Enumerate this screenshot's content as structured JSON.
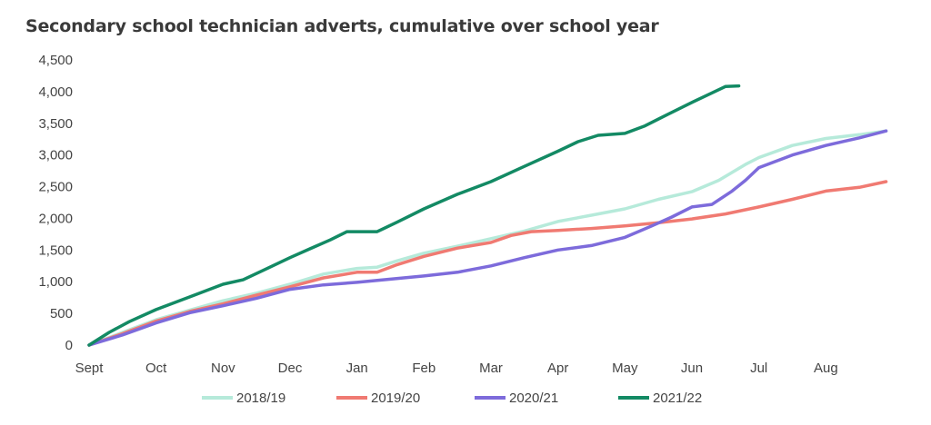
{
  "chart_data": {
    "type": "line",
    "title": "Secondary school technician adverts, cumulative over school year",
    "xlabel": "",
    "ylabel": "",
    "x_ticks": [
      "Sept",
      "Oct",
      "Nov",
      "Dec",
      "Jan",
      "Feb",
      "Mar",
      "Apr",
      "May",
      "Jun",
      "Jul",
      "Aug"
    ],
    "xlim": [
      0,
      12
    ],
    "ylim": [
      0,
      4500
    ],
    "y_ticks": [
      "0",
      "500",
      "1,000",
      "1,500",
      "2,000",
      "2,500",
      "3,000",
      "3,500",
      "4,000",
      "4,500"
    ],
    "y_tick_values": [
      0,
      500,
      1000,
      1500,
      2000,
      2500,
      3000,
      3500,
      4000,
      4500
    ],
    "grid": false,
    "legend": "bottom",
    "series": [
      {
        "name": "2018/19",
        "color": "#b6eada",
        "points": [
          [
            0,
            0
          ],
          [
            0.5,
            200
          ],
          [
            1,
            400
          ],
          [
            1.5,
            550
          ],
          [
            2,
            700
          ],
          [
            2.5,
            820
          ],
          [
            3,
            960
          ],
          [
            3.5,
            1120
          ],
          [
            4,
            1210
          ],
          [
            4.3,
            1230
          ],
          [
            4.6,
            1330
          ],
          [
            5,
            1450
          ],
          [
            5.5,
            1560
          ],
          [
            6,
            1680
          ],
          [
            6.5,
            1800
          ],
          [
            7,
            1950
          ],
          [
            7.5,
            2050
          ],
          [
            8,
            2150
          ],
          [
            8.5,
            2300
          ],
          [
            9,
            2420
          ],
          [
            9.4,
            2600
          ],
          [
            9.8,
            2850
          ],
          [
            10,
            2960
          ],
          [
            10.5,
            3150
          ],
          [
            11,
            3260
          ],
          [
            11.5,
            3320
          ],
          [
            11.9,
            3380
          ]
        ]
      },
      {
        "name": "2019/20",
        "color": "#f07a72",
        "points": [
          [
            0,
            0
          ],
          [
            0.5,
            180
          ],
          [
            1,
            380
          ],
          [
            1.5,
            530
          ],
          [
            2,
            650
          ],
          [
            2.5,
            790
          ],
          [
            3,
            920
          ],
          [
            3.5,
            1060
          ],
          [
            4,
            1150
          ],
          [
            4.3,
            1150
          ],
          [
            4.6,
            1270
          ],
          [
            5,
            1400
          ],
          [
            5.5,
            1530
          ],
          [
            6,
            1620
          ],
          [
            6.3,
            1730
          ],
          [
            6.6,
            1790
          ],
          [
            7,
            1810
          ],
          [
            7.5,
            1840
          ],
          [
            8,
            1880
          ],
          [
            8.5,
            1930
          ],
          [
            9,
            1990
          ],
          [
            9.5,
            2070
          ],
          [
            10,
            2180
          ],
          [
            10.5,
            2300
          ],
          [
            11,
            2430
          ],
          [
            11.5,
            2490
          ],
          [
            11.9,
            2580
          ]
        ]
      },
      {
        "name": "2020/21",
        "color": "#7d6bdb",
        "points": [
          [
            0,
            0
          ],
          [
            0.5,
            160
          ],
          [
            1,
            350
          ],
          [
            1.5,
            510
          ],
          [
            2,
            620
          ],
          [
            2.5,
            740
          ],
          [
            3,
            880
          ],
          [
            3.5,
            950
          ],
          [
            4,
            990
          ],
          [
            4.5,
            1040
          ],
          [
            5,
            1090
          ],
          [
            5.5,
            1150
          ],
          [
            6,
            1250
          ],
          [
            6.5,
            1380
          ],
          [
            7,
            1500
          ],
          [
            7.5,
            1570
          ],
          [
            8,
            1700
          ],
          [
            8.4,
            1880
          ],
          [
            8.7,
            2020
          ],
          [
            9,
            2180
          ],
          [
            9.3,
            2220
          ],
          [
            9.6,
            2430
          ],
          [
            9.8,
            2600
          ],
          [
            10,
            2800
          ],
          [
            10.5,
            3000
          ],
          [
            11,
            3150
          ],
          [
            11.5,
            3270
          ],
          [
            11.9,
            3380
          ]
        ]
      },
      {
        "name": "2021/22",
        "color": "#138a64",
        "points": [
          [
            0,
            0
          ],
          [
            0.3,
            200
          ],
          [
            0.6,
            370
          ],
          [
            1,
            560
          ],
          [
            1.5,
            760
          ],
          [
            2,
            960
          ],
          [
            2.3,
            1030
          ],
          [
            2.6,
            1180
          ],
          [
            3,
            1380
          ],
          [
            3.3,
            1520
          ],
          [
            3.6,
            1660
          ],
          [
            3.85,
            1790
          ],
          [
            4.3,
            1790
          ],
          [
            4.6,
            1940
          ],
          [
            5,
            2150
          ],
          [
            5.5,
            2380
          ],
          [
            6,
            2580
          ],
          [
            6.5,
            2820
          ],
          [
            7,
            3060
          ],
          [
            7.3,
            3210
          ],
          [
            7.6,
            3310
          ],
          [
            8,
            3340
          ],
          [
            8.3,
            3460
          ],
          [
            8.6,
            3620
          ],
          [
            9,
            3830
          ],
          [
            9.3,
            3980
          ],
          [
            9.5,
            4080
          ],
          [
            9.7,
            4090
          ]
        ]
      }
    ]
  }
}
